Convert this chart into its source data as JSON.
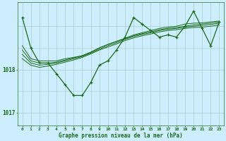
{
  "xlabel": "Graphe pression niveau de la mer (hPa)",
  "bg_color": "#cceeff",
  "grid_color_major": "#aacccc",
  "grid_color_minor": "#bbdddd",
  "line_color": "#1a6b1a",
  "dark_line_color": "#1a6b1a",
  "xlim": [
    -0.5,
    23.5
  ],
  "ylim": [
    1016.7,
    1019.55
  ],
  "yticks": [
    1017,
    1018
  ],
  "xticks": [
    0,
    1,
    2,
    3,
    4,
    5,
    6,
    7,
    8,
    9,
    10,
    11,
    12,
    13,
    14,
    15,
    16,
    17,
    18,
    19,
    20,
    21,
    22,
    23
  ],
  "hours": [
    0,
    1,
    2,
    3,
    4,
    5,
    6,
    7,
    8,
    9,
    10,
    11,
    12,
    13,
    14,
    15,
    16,
    17,
    18,
    19,
    20,
    21,
    22,
    23
  ],
  "line1": [
    1019.2,
    1018.5,
    1018.15,
    1018.15,
    1017.9,
    1017.65,
    1017.4,
    1017.4,
    1017.7,
    1018.1,
    1018.2,
    1018.45,
    1018.75,
    1019.2,
    1019.05,
    1018.9,
    1018.75,
    1018.8,
    1018.75,
    1019.0,
    1019.35,
    1018.95,
    1018.55,
    1019.1
  ],
  "line2": [
    1018.55,
    1018.25,
    1018.2,
    1018.2,
    1018.2,
    1018.25,
    1018.28,
    1018.32,
    1018.4,
    1018.5,
    1018.58,
    1018.65,
    1018.72,
    1018.8,
    1018.85,
    1018.9,
    1018.95,
    1018.98,
    1019.0,
    1019.05,
    1019.07,
    1019.08,
    1019.1,
    1019.12
  ],
  "line3": [
    1018.45,
    1018.2,
    1018.15,
    1018.15,
    1018.17,
    1018.22,
    1018.27,
    1018.32,
    1018.4,
    1018.5,
    1018.58,
    1018.65,
    1018.72,
    1018.78,
    1018.83,
    1018.87,
    1018.92,
    1018.95,
    1018.97,
    1019.0,
    1019.03,
    1019.05,
    1019.07,
    1019.1
  ],
  "line4": [
    1018.35,
    1018.15,
    1018.1,
    1018.12,
    1018.15,
    1018.2,
    1018.25,
    1018.3,
    1018.38,
    1018.47,
    1018.55,
    1018.62,
    1018.7,
    1018.76,
    1018.81,
    1018.85,
    1018.9,
    1018.93,
    1018.95,
    1018.98,
    1019.0,
    1019.02,
    1019.04,
    1019.07
  ],
  "line5": [
    1018.25,
    1018.1,
    1018.05,
    1018.08,
    1018.12,
    1018.17,
    1018.22,
    1018.28,
    1018.36,
    1018.45,
    1018.52,
    1018.59,
    1018.67,
    1018.73,
    1018.78,
    1018.82,
    1018.87,
    1018.9,
    1018.92,
    1018.95,
    1018.97,
    1018.98,
    1019.0,
    1019.03
  ]
}
